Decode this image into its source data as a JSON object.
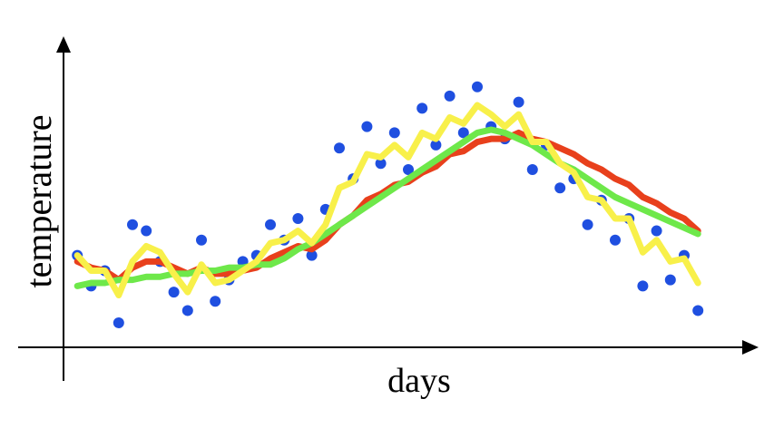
{
  "chart_data": {
    "type": "line",
    "xlabel": "days",
    "ylabel": "temperature",
    "xlim": [
      0,
      100
    ],
    "ylim": [
      0,
      100
    ],
    "x": [
      2,
      4,
      6,
      8,
      10,
      12,
      14,
      16,
      18,
      20,
      22,
      24,
      26,
      28,
      30,
      32,
      34,
      36,
      38,
      40,
      42,
      44,
      46,
      48,
      50,
      52,
      54,
      56,
      58,
      60,
      62,
      64,
      66,
      68,
      70,
      72,
      74,
      76,
      78,
      80,
      82,
      84,
      86,
      88,
      90,
      92
    ],
    "series": [
      {
        "type": "scatter",
        "color": "#1f4fe0",
        "values": [
          30,
          20,
          25,
          8,
          40,
          38,
          28,
          18,
          12,
          35,
          15,
          22,
          28,
          30,
          40,
          35,
          42,
          30,
          45,
          65,
          55,
          72,
          60,
          70,
          58,
          78,
          66,
          82,
          70,
          85,
          72,
          68,
          80,
          58,
          66,
          52,
          55,
          40,
          48,
          35,
          42,
          20,
          38,
          22,
          30,
          12
        ]
      },
      {
        "type": "line",
        "color": "#e8401c",
        "values": [
          28,
          26,
          25,
          22,
          26,
          28,
          28,
          26,
          24,
          26,
          24,
          24,
          25,
          26,
          29,
          31,
          33,
          32,
          35,
          40,
          43,
          48,
          50,
          53,
          54,
          57,
          59,
          63,
          64,
          67,
          68,
          68,
          70,
          68,
          67,
          65,
          63,
          60,
          58,
          55,
          53,
          49,
          47,
          44,
          42,
          38
        ]
      },
      {
        "type": "line",
        "color": "#6ee84a",
        "values": [
          20,
          21,
          21,
          22,
          22,
          23,
          23,
          24,
          24,
          25,
          25,
          26,
          26,
          27,
          27,
          29,
          32,
          34,
          37,
          40,
          43,
          46,
          49,
          52,
          55,
          58,
          61,
          64,
          67,
          70,
          71,
          70,
          68,
          66,
          63,
          60,
          58,
          55,
          52,
          49,
          47,
          45,
          43,
          41,
          39,
          37
        ]
      },
      {
        "type": "line",
        "color": "#f8f04a",
        "values": [
          30,
          25,
          25,
          17,
          28,
          33,
          31,
          24,
          18,
          27,
          21,
          22,
          25,
          28,
          34,
          35,
          38,
          34,
          40,
          52,
          54,
          63,
          62,
          66,
          62,
          70,
          68,
          75,
          73,
          79,
          76,
          72,
          76,
          67,
          67,
          60,
          57,
          49,
          48,
          42,
          42,
          31,
          35,
          28,
          29,
          21
        ]
      }
    ]
  }
}
